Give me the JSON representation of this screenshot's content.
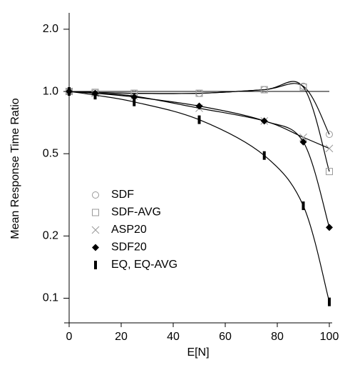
{
  "chart_data": {
    "type": "line",
    "x_label": "E[N]",
    "y_label": "Mean Response Time Ratio",
    "x": [
      0,
      10,
      25,
      50,
      75,
      90,
      100
    ],
    "xlim": [
      0,
      100
    ],
    "xticks": [
      0,
      20,
      40,
      60,
      80,
      100
    ],
    "ylim": [
      0.076,
      2.4
    ],
    "log_y": true,
    "yticks": [
      0.1,
      0.2,
      0.5,
      {
        "value": 1,
        "label": "1.0"
      },
      {
        "value": 2,
        "label": "2.0"
      }
    ],
    "series": [
      {
        "name": "SDF",
        "color": "#999999",
        "marker": "circle",
        "values": [
          1.0,
          0.99,
          0.98,
          0.98,
          1.02,
          1.06,
          0.62
        ]
      },
      {
        "name": "SDF-AVG",
        "color": "#999999",
        "marker": "square",
        "values": [
          1.0,
          0.99,
          0.98,
          0.98,
          1.02,
          1.05,
          0.41
        ]
      },
      {
        "name": "ASP20",
        "color": "#999999",
        "marker": "cross",
        "values": [
          1.0,
          0.98,
          0.95,
          0.83,
          0.72,
          0.6,
          0.53
        ]
      },
      {
        "name": "SDF20",
        "color": "#000000",
        "marker": "diamond",
        "values": [
          1.0,
          0.98,
          0.94,
          0.85,
          0.72,
          0.57,
          0.22
        ]
      },
      {
        "name": "EQ, EQ-AVG",
        "color": "#000000",
        "marker": "bar",
        "values": [
          1.0,
          0.96,
          0.89,
          0.73,
          0.49,
          0.28,
          0.096
        ]
      }
    ]
  }
}
